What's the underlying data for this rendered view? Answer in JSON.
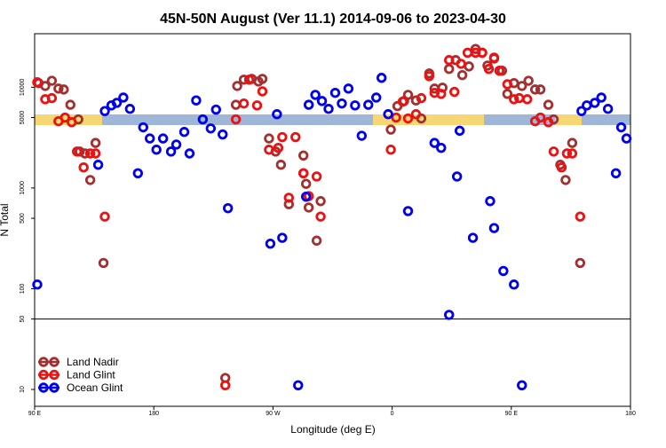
{
  "chart_data": {
    "type": "scatter",
    "title": "45N-50N August (Ver 11.1)   2014-09-06 to 2023-04-30",
    "xlabel": "Longitude (deg E)",
    "ylabel": "N Total",
    "xlim": [
      90,
      540
    ],
    "xticks": [
      {
        "value": 90,
        "label": "90 E"
      },
      180,
      {
        "value": 270,
        "label": "90 W"
      },
      {
        "value": 360,
        "label": "0"
      },
      {
        "value": 450,
        "label": "90 E"
      },
      {
        "value": 540,
        "label": "180"
      }
    ],
    "ylim": [
      6.8,
      34000
    ],
    "ylog": true,
    "yticks": [
      10,
      50,
      100,
      500,
      1000,
      5000,
      10000
    ],
    "hline": 50,
    "legend": "bottom-left",
    "series": [
      {
        "name": "Land Nadir",
        "color": "#a33030",
        "x": [
          93,
          98,
          103,
          108,
          112,
          117,
          123,
          124,
          128,
          136,
          132,
          142,
          243,
          248,
          254,
          259,
          262,
          267,
          272,
          276,
          293,
          295,
          297,
          282,
          303,
          306,
          293,
          242,
          234,
          359,
          364,
          369,
          372,
          378,
          382,
          388,
          392,
          398,
          403,
          408,
          413,
          418,
          423,
          428,
          432,
          437,
          443,
          447,
          452,
          458,
          463,
          468,
          472,
          478,
          482,
          487,
          491,
          496,
          502
        ],
        "values": [
          11000,
          10300,
          11600,
          9700,
          9500,
          6700,
          4800,
          2300,
          2200,
          2800,
          1200,
          180,
          10300,
          11900,
          12100,
          11400,
          12100,
          3100,
          2300,
          1700,
          2100,
          1100,
          640,
          690,
          300,
          740,
          1400,
          6700,
          13,
          3800,
          6500,
          7300,
          8400,
          7400,
          4900,
          13700,
          9700,
          9900,
          15200,
          18600,
          13200,
          16100,
          24000,
          22000,
          16400,
          19300,
          14600,
          8600,
          11000,
          10300,
          11600,
          9500,
          9500,
          6700,
          4800,
          1700,
          1200,
          2800,
          180
        ]
      },
      {
        "name": "Land Glint",
        "color": "#ee1111",
        "x": [
          92,
          98,
          103,
          108,
          113,
          118,
          122,
          127,
          132,
          136,
          143,
          242,
          248,
          252,
          258,
          262,
          267,
          274,
          277,
          287,
          293,
          297,
          282,
          303,
          306,
          234,
          359,
          363,
          368,
          372,
          378,
          382,
          388,
          392,
          397,
          403,
          407,
          412,
          417,
          423,
          428,
          433,
          437,
          441,
          447,
          452,
          456,
          462,
          468,
          472,
          478,
          482,
          488,
          492,
          496,
          502
        ],
        "values": [
          11200,
          7600,
          7800,
          4600,
          5000,
          4500,
          2300,
          1600,
          2200,
          2200,
          520,
          4800,
          6900,
          11900,
          6600,
          9100,
          2400,
          2500,
          3200,
          3200,
          1400,
          830,
          800,
          1300,
          520,
          11,
          2400,
          5000,
          7200,
          4900,
          5400,
          7800,
          12900,
          8800,
          8600,
          18600,
          9000,
          17100,
          22000,
          22000,
          22000,
          15200,
          19700,
          14600,
          10700,
          7600,
          7800,
          7600,
          4600,
          5000,
          4500,
          2300,
          1600,
          2200,
          2200,
          520
        ]
      },
      {
        "name": "Ocean Glint",
        "color": "#0000ee",
        "x": [
          92,
          138,
          143,
          148,
          152,
          157,
          162,
          168,
          172,
          177,
          182,
          187,
          193,
          197,
          203,
          207,
          212,
          217,
          223,
          227,
          232,
          236,
          268,
          273,
          277,
          289,
          295,
          297,
          302,
          307,
          312,
          317,
          322,
          327,
          332,
          337,
          342,
          348,
          352,
          357,
          372,
          392,
          397,
          403,
          409,
          411,
          421,
          434,
          437,
          444,
          452,
          458,
          503,
          507,
          513,
          518,
          523,
          529,
          533,
          537
        ],
        "values": [
          110,
          1700,
          5800,
          6600,
          7000,
          7900,
          6100,
          1400,
          4000,
          3100,
          2400,
          3100,
          2300,
          2700,
          3600,
          2200,
          7400,
          4800,
          3900,
          6000,
          3400,
          630,
          280,
          5400,
          320,
          11,
          820,
          6700,
          8400,
          7300,
          6100,
          8800,
          6900,
          9700,
          6600,
          3300,
          6700,
          7900,
          12400,
          5400,
          590,
          2800,
          2500,
          55,
          1300,
          3700,
          320,
          740,
          400,
          150,
          110,
          11,
          5800,
          6600,
          7000,
          7900,
          6100,
          1400,
          4000,
          3100
        ]
      }
    ]
  }
}
